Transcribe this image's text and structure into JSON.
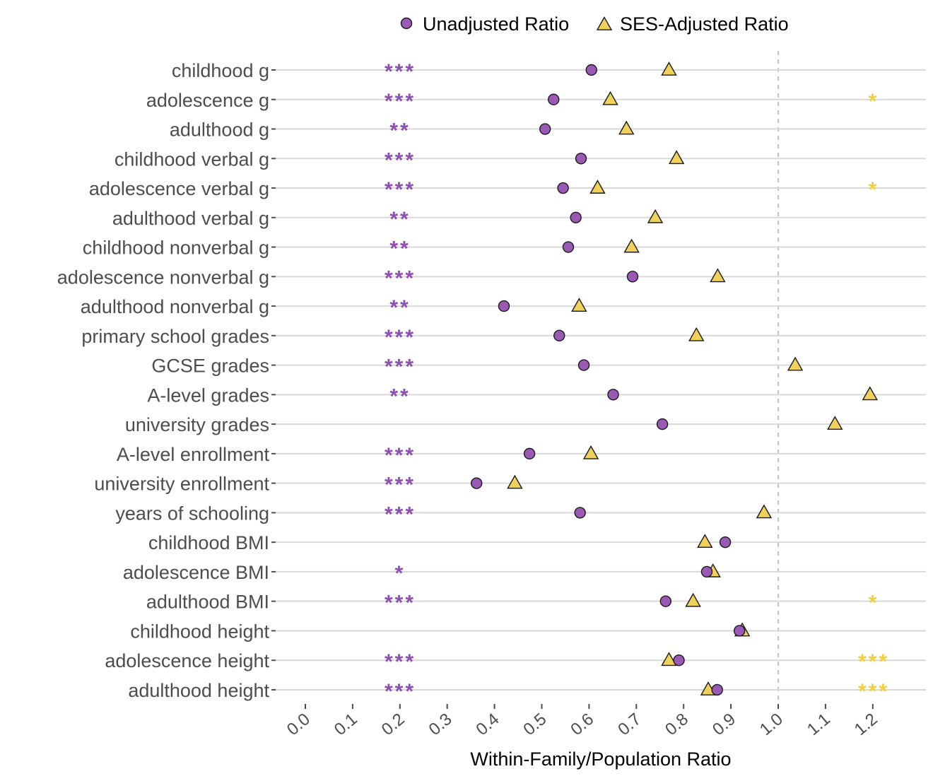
{
  "chart_data": {
    "type": "scatter",
    "title": "",
    "xlabel": "Within-Family/Population Ratio",
    "ylabel": "",
    "xlim": [
      -0.05,
      1.31
    ],
    "xticks": [
      "0.0",
      "0.1",
      "0.2",
      "0.3",
      "0.4",
      "0.5",
      "0.6",
      "0.7",
      "0.8",
      "0.9",
      "1.0",
      "1.1",
      "1.2"
    ],
    "reference_line": 1.0,
    "grid": true,
    "legend_position": "top",
    "categories": [
      "childhood g",
      "adolescence g",
      "adulthood g",
      "childhood verbal g",
      "adolescence verbal g",
      "adulthood verbal g",
      "childhood nonverbal g",
      "adolescence nonverbal g",
      "adulthood nonverbal g",
      "primary school grades",
      "GCSE grades",
      "A-level grades",
      "university grades",
      "A-level enrollment",
      "university enrollment",
      "years of schooling",
      "childhood BMI",
      "adolescence BMI",
      "adulthood BMI",
      "childhood height",
      "adolescence height",
      "adulthood height"
    ],
    "series": [
      {
        "name": "Unadjusted Ratio",
        "marker": "circle",
        "color": "#9b59b6",
        "values": [
          0.605,
          0.525,
          0.507,
          0.583,
          0.545,
          0.572,
          0.556,
          0.692,
          0.42,
          0.537,
          0.589,
          0.651,
          0.755,
          0.474,
          0.362,
          0.581,
          0.888,
          0.849,
          0.762,
          0.918,
          0.79,
          0.871
        ],
        "significance": [
          "***",
          "***",
          "**",
          "***",
          "***",
          "**",
          "**",
          "***",
          "**",
          "***",
          "***",
          "**",
          "",
          "***",
          "***",
          "***",
          "",
          "*",
          "***",
          "",
          "***",
          "***"
        ]
      },
      {
        "name": "SES-Adjusted Ratio",
        "marker": "triangle",
        "color": "#f0d15a",
        "values": [
          0.769,
          0.645,
          0.679,
          0.785,
          0.618,
          0.74,
          0.69,
          0.872,
          0.579,
          0.827,
          1.036,
          1.194,
          1.12,
          0.604,
          0.443,
          0.97,
          0.845,
          0.862,
          0.82,
          0.924,
          0.769,
          0.852
        ],
        "significance": [
          "",
          "*",
          "",
          "",
          "*",
          "",
          "",
          "",
          "",
          "",
          "",
          "",
          "",
          "",
          "",
          "",
          "",
          "",
          "*",
          "",
          "***",
          "***"
        ]
      }
    ]
  },
  "colors": {
    "unadjusted_fill": "#9b59b6",
    "unadjusted_sig": "#8e4fb3",
    "adjusted_fill": "#f0d15a",
    "adjusted_sig": "#f2cf3f"
  }
}
